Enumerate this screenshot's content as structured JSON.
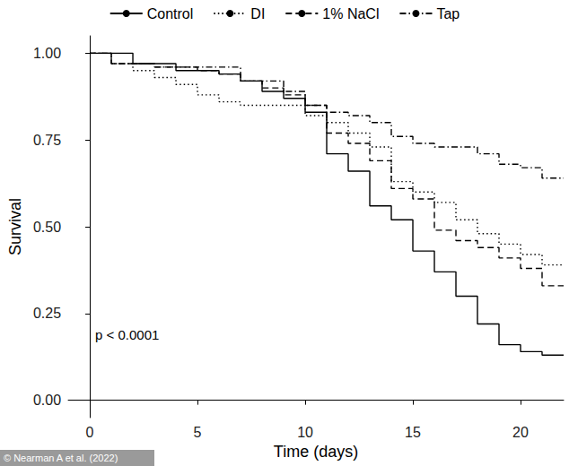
{
  "chart_data": {
    "type": "line",
    "x_label": "Time (days)",
    "y_label": "Survival",
    "annotation": "p < 0.0001",
    "source": "© Nearman A et al. (2022)",
    "legend": "top",
    "grid": false,
    "xlim": [
      -1,
      22
    ],
    "xticks": [
      0,
      5,
      10,
      15,
      20
    ],
    "ylim": [
      -0.05,
      1.05
    ],
    "yticks": [
      {
        "value": 0,
        "label": "0.00"
      },
      {
        "value": 0.25,
        "label": "0.25"
      },
      {
        "value": 0.5,
        "label": "0.50"
      },
      {
        "value": 0.75,
        "label": "0.75"
      },
      {
        "value": 1,
        "label": "1.00"
      }
    ],
    "x": [
      0,
      1,
      2,
      3,
      4,
      5,
      6,
      7,
      8,
      9,
      10,
      11,
      12,
      13,
      14,
      15,
      16,
      17,
      18,
      19,
      20,
      21,
      22
    ],
    "series": [
      {
        "name": "Control",
        "color": "#000000",
        "line_style": "solid",
        "values": [
          1.0,
          1.0,
          0.97,
          0.97,
          0.95,
          0.95,
          0.94,
          0.92,
          0.89,
          0.87,
          0.83,
          0.71,
          0.66,
          0.56,
          0.52,
          0.43,
          0.37,
          0.3,
          0.22,
          0.16,
          0.14,
          0.13,
          0.13
        ]
      },
      {
        "name": "DI",
        "color": "#000000",
        "line_style": "dotted",
        "values": [
          1.0,
          0.97,
          0.95,
          0.93,
          0.91,
          0.88,
          0.86,
          0.85,
          0.85,
          0.85,
          0.82,
          0.8,
          0.77,
          0.73,
          0.63,
          0.6,
          0.57,
          0.52,
          0.48,
          0.45,
          0.42,
          0.39,
          0.39
        ]
      },
      {
        "name": "1% NaCl",
        "color": "#000000",
        "line_style": "dashed",
        "values": [
          1.0,
          0.97,
          0.97,
          0.96,
          0.96,
          0.95,
          0.94,
          0.92,
          0.9,
          0.88,
          0.85,
          0.77,
          0.74,
          0.69,
          0.61,
          0.58,
          0.49,
          0.46,
          0.44,
          0.41,
          0.38,
          0.33,
          0.33
        ]
      },
      {
        "name": "Tap",
        "color": "#000000",
        "line_style": "dashdot",
        "values": [
          1.0,
          0.97,
          0.97,
          0.96,
          0.96,
          0.96,
          0.96,
          0.92,
          0.92,
          0.89,
          0.85,
          0.83,
          0.82,
          0.8,
          0.76,
          0.74,
          0.73,
          0.73,
          0.71,
          0.68,
          0.67,
          0.64,
          0.64
        ]
      }
    ]
  }
}
